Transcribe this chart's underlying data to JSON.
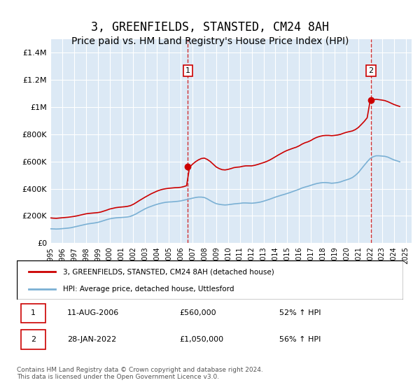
{
  "title": "3, GREENFIELDS, STANSTED, CM24 8AH",
  "subtitle": "Price paid vs. HM Land Registry's House Price Index (HPI)",
  "title_fontsize": 12,
  "subtitle_fontsize": 10,
  "xlabel": "",
  "ylabel": "",
  "ylim": [
    0,
    1500000
  ],
  "yticks": [
    0,
    200000,
    400000,
    600000,
    800000,
    1000000,
    1200000,
    1400000
  ],
  "ytick_labels": [
    "£0",
    "£200K",
    "£400K",
    "£600K",
    "£800K",
    "£1M",
    "£1.2M",
    "£1.4M"
  ],
  "xlim_start": 1995.0,
  "xlim_end": 2025.5,
  "xtick_years": [
    1995,
    1996,
    1997,
    1998,
    1999,
    2000,
    2001,
    2002,
    2003,
    2004,
    2005,
    2006,
    2007,
    2008,
    2009,
    2010,
    2011,
    2012,
    2013,
    2014,
    2015,
    2016,
    2017,
    2018,
    2019,
    2020,
    2021,
    2022,
    2023,
    2024,
    2025
  ],
  "plot_bg_color": "#dce9f5",
  "fig_bg_color": "#ffffff",
  "grid_color": "#ffffff",
  "red_line_color": "#cc0000",
  "blue_line_color": "#7ab0d4",
  "sale1_x": 2006.61,
  "sale1_y": 560000,
  "sale2_x": 2022.08,
  "sale2_y": 1050000,
  "sale_marker_color": "#cc0000",
  "vline_color": "#cc0000",
  "legend_label_red": "3, GREENFIELDS, STANSTED, CM24 8AH (detached house)",
  "legend_label_blue": "HPI: Average price, detached house, Uttlesford",
  "ann1_label": "1",
  "ann2_label": "2",
  "table_row1": [
    "1",
    "11-AUG-2006",
    "£560,000",
    "52% ↑ HPI"
  ],
  "table_row2": [
    "2",
    "28-JAN-2022",
    "£1,050,000",
    "56% ↑ HPI"
  ],
  "footer": "Contains HM Land Registry data © Crown copyright and database right 2024.\nThis data is licensed under the Open Government Licence v3.0.",
  "red_hpi_years": [
    1995.0,
    1995.25,
    1995.5,
    1995.75,
    1996.0,
    1996.25,
    1996.5,
    1996.75,
    1997.0,
    1997.25,
    1997.5,
    1997.75,
    1998.0,
    1998.25,
    1998.5,
    1998.75,
    1999.0,
    1999.25,
    1999.5,
    1999.75,
    2000.0,
    2000.25,
    2000.5,
    2000.75,
    2001.0,
    2001.25,
    2001.5,
    2001.75,
    2002.0,
    2002.25,
    2002.5,
    2002.75,
    2003.0,
    2003.25,
    2003.5,
    2003.75,
    2004.0,
    2004.25,
    2004.5,
    2004.75,
    2005.0,
    2005.25,
    2005.5,
    2005.75,
    2006.0,
    2006.25,
    2006.5,
    2006.75,
    2007.0,
    2007.25,
    2007.5,
    2007.75,
    2008.0,
    2008.25,
    2008.5,
    2008.75,
    2009.0,
    2009.25,
    2009.5,
    2009.75,
    2010.0,
    2010.25,
    2010.5,
    2010.75,
    2011.0,
    2011.25,
    2011.5,
    2011.75,
    2012.0,
    2012.25,
    2012.5,
    2012.75,
    2013.0,
    2013.25,
    2013.5,
    2013.75,
    2014.0,
    2014.25,
    2014.5,
    2014.75,
    2015.0,
    2015.25,
    2015.5,
    2015.75,
    2016.0,
    2016.25,
    2016.5,
    2016.75,
    2017.0,
    2017.25,
    2017.5,
    2017.75,
    2018.0,
    2018.25,
    2018.5,
    2018.75,
    2019.0,
    2019.25,
    2019.5,
    2019.75,
    2020.0,
    2020.25,
    2020.5,
    2020.75,
    2021.0,
    2021.25,
    2021.5,
    2021.75,
    2022.0,
    2022.25,
    2022.5,
    2022.75,
    2023.0,
    2023.25,
    2023.5,
    2023.75,
    2024.0,
    2024.25,
    2024.5
  ],
  "red_hpi_values": [
    185000,
    183000,
    182000,
    184000,
    186000,
    188000,
    190000,
    193000,
    196000,
    200000,
    205000,
    210000,
    215000,
    218000,
    220000,
    222000,
    224000,
    228000,
    235000,
    242000,
    250000,
    255000,
    260000,
    263000,
    265000,
    267000,
    270000,
    275000,
    285000,
    298000,
    312000,
    325000,
    338000,
    350000,
    362000,
    372000,
    382000,
    390000,
    396000,
    400000,
    403000,
    405000,
    407000,
    408000,
    410000,
    415000,
    422000,
    558000,
    580000,
    598000,
    612000,
    622000,
    625000,
    615000,
    600000,
    580000,
    560000,
    548000,
    540000,
    538000,
    542000,
    548000,
    555000,
    558000,
    560000,
    565000,
    568000,
    568000,
    568000,
    572000,
    578000,
    585000,
    592000,
    600000,
    610000,
    622000,
    635000,
    648000,
    660000,
    672000,
    682000,
    690000,
    698000,
    705000,
    715000,
    728000,
    738000,
    745000,
    755000,
    768000,
    778000,
    785000,
    790000,
    792000,
    792000,
    790000,
    792000,
    795000,
    800000,
    808000,
    815000,
    820000,
    825000,
    835000,
    850000,
    872000,
    895000,
    922000,
    1048000,
    1055000,
    1058000,
    1055000,
    1052000,
    1048000,
    1040000,
    1030000,
    1020000,
    1012000,
    1005000
  ],
  "blue_hpi_years": [
    1995.0,
    1995.25,
    1995.5,
    1995.75,
    1996.0,
    1996.25,
    1996.5,
    1996.75,
    1997.0,
    1997.25,
    1997.5,
    1997.75,
    1998.0,
    1998.25,
    1998.5,
    1998.75,
    1999.0,
    1999.25,
    1999.5,
    1999.75,
    2000.0,
    2000.25,
    2000.5,
    2000.75,
    2001.0,
    2001.25,
    2001.5,
    2001.75,
    2002.0,
    2002.25,
    2002.5,
    2002.75,
    2003.0,
    2003.25,
    2003.5,
    2003.75,
    2004.0,
    2004.25,
    2004.5,
    2004.75,
    2005.0,
    2005.25,
    2005.5,
    2005.75,
    2006.0,
    2006.25,
    2006.5,
    2006.75,
    2007.0,
    2007.25,
    2007.5,
    2007.75,
    2008.0,
    2008.25,
    2008.5,
    2008.75,
    2009.0,
    2009.25,
    2009.5,
    2009.75,
    2010.0,
    2010.25,
    2010.5,
    2010.75,
    2011.0,
    2011.25,
    2011.5,
    2011.75,
    2012.0,
    2012.25,
    2012.5,
    2012.75,
    2013.0,
    2013.25,
    2013.5,
    2013.75,
    2014.0,
    2014.25,
    2014.5,
    2014.75,
    2015.0,
    2015.25,
    2015.5,
    2015.75,
    2016.0,
    2016.25,
    2016.5,
    2016.75,
    2017.0,
    2017.25,
    2017.5,
    2017.75,
    2018.0,
    2018.25,
    2018.5,
    2018.75,
    2019.0,
    2019.25,
    2019.5,
    2019.75,
    2020.0,
    2020.25,
    2020.5,
    2020.75,
    2021.0,
    2021.25,
    2021.5,
    2021.75,
    2022.0,
    2022.25,
    2022.5,
    2022.75,
    2023.0,
    2023.25,
    2023.5,
    2023.75,
    2024.0,
    2024.25,
    2024.5
  ],
  "blue_hpi_values": [
    105000,
    104000,
    103000,
    104000,
    106000,
    108000,
    110000,
    113000,
    118000,
    123000,
    128000,
    133000,
    138000,
    142000,
    145000,
    148000,
    152000,
    158000,
    165000,
    172000,
    178000,
    182000,
    185000,
    187000,
    188000,
    190000,
    192000,
    196000,
    205000,
    215000,
    228000,
    240000,
    252000,
    262000,
    270000,
    278000,
    285000,
    291000,
    296000,
    300000,
    302000,
    303000,
    305000,
    307000,
    310000,
    315000,
    320000,
    325000,
    330000,
    335000,
    338000,
    338000,
    335000,
    325000,
    312000,
    300000,
    290000,
    285000,
    282000,
    280000,
    282000,
    285000,
    288000,
    290000,
    292000,
    295000,
    295000,
    294000,
    293000,
    295000,
    298000,
    302000,
    308000,
    315000,
    322000,
    330000,
    338000,
    345000,
    352000,
    358000,
    365000,
    372000,
    380000,
    388000,
    396000,
    405000,
    412000,
    418000,
    425000,
    432000,
    438000,
    442000,
    445000,
    445000,
    443000,
    440000,
    442000,
    445000,
    450000,
    458000,
    465000,
    472000,
    482000,
    498000,
    518000,
    545000,
    572000,
    598000,
    622000,
    635000,
    642000,
    642000,
    640000,
    638000,
    632000,
    622000,
    612000,
    605000,
    598000
  ]
}
